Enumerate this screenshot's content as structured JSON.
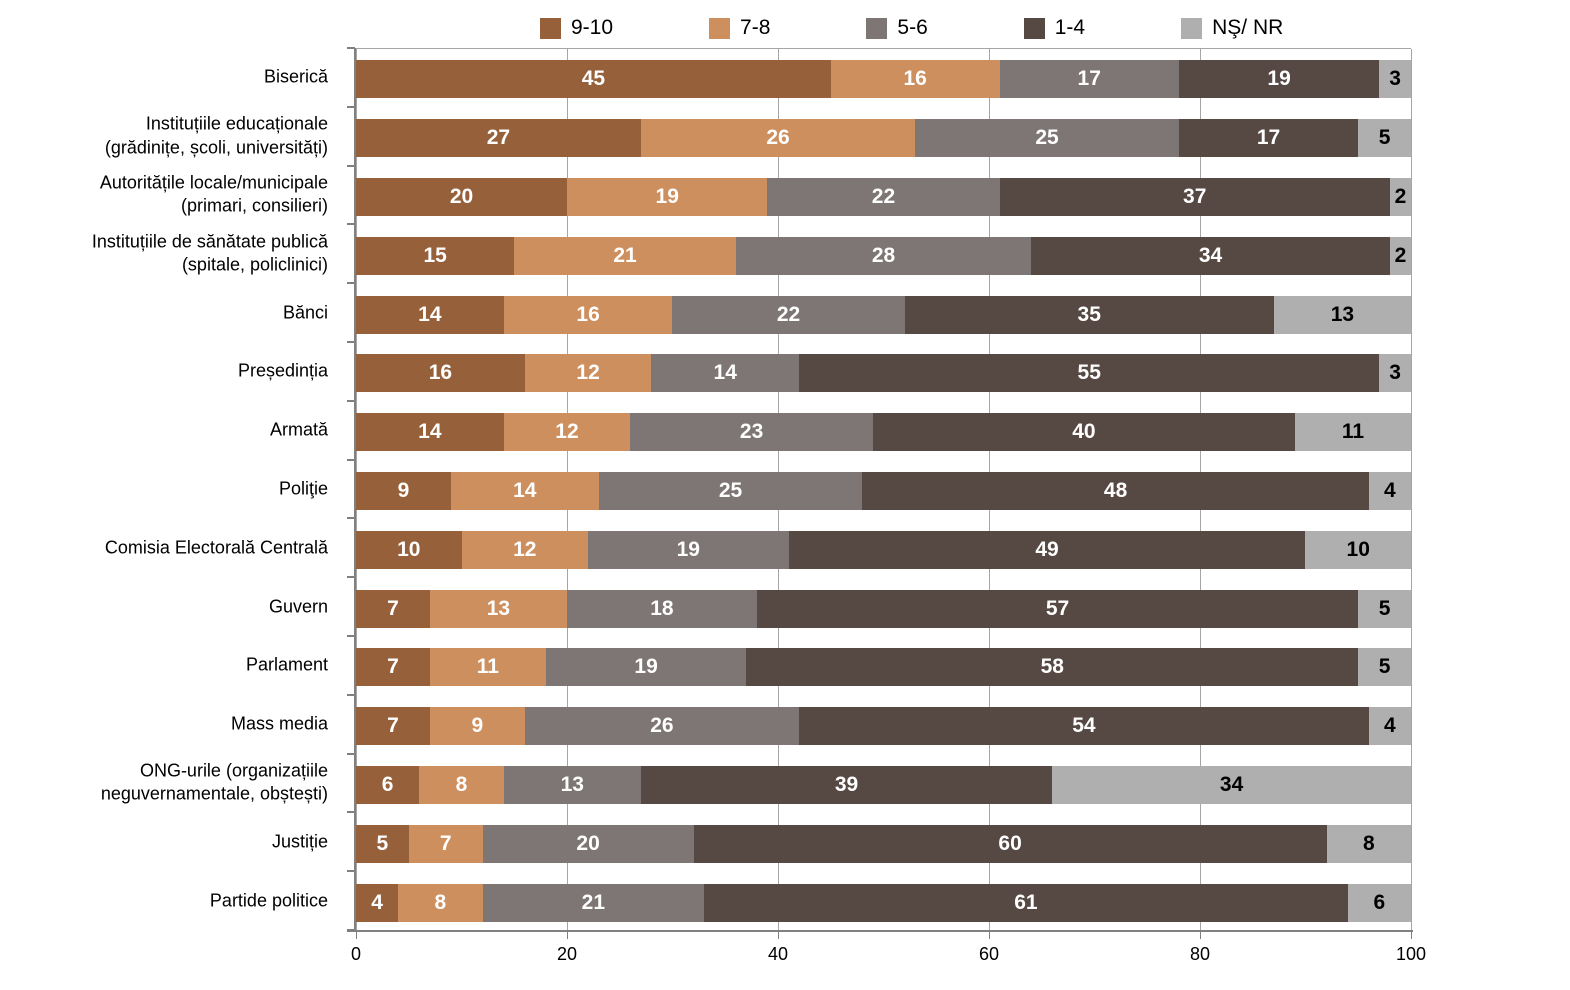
{
  "chart_data": {
    "type": "bar",
    "orientation": "horizontal",
    "stacked": true,
    "title": "",
    "xlabel": "",
    "ylabel": "",
    "xlim": [
      0,
      100
    ],
    "x_ticks": [
      0,
      20,
      40,
      60,
      80,
      100
    ],
    "grid": "vertical",
    "legend_position": "top",
    "categories": [
      "Biserică",
      "Instituțiile educaționale\n(grădinițe, școli, universități)",
      "Autoritățile locale/municipale\n(primari, consilieri)",
      "Instituțiile de sănătate publică\n(spitale, policlinici)",
      "Bănci",
      "Președinția",
      "Armată",
      "Poliţie",
      "Comisia Electorală Centrală",
      "Guvern",
      "Parlament",
      "Mass media",
      "ONG-urile (organizațiile\nneguvernamentale, obștești)",
      "Justiție",
      "Partide politice"
    ],
    "series": [
      {
        "name": "9-10",
        "color": "#96613A",
        "text_color": "#FFFFFF",
        "values": [
          45,
          27,
          20,
          15,
          14,
          16,
          14,
          9,
          10,
          7,
          7,
          7,
          6,
          5,
          4
        ]
      },
      {
        "name": "7-8",
        "color": "#CE8F5E",
        "text_color": "#FFFFFF",
        "values": [
          16,
          26,
          19,
          21,
          16,
          12,
          12,
          14,
          12,
          13,
          11,
          9,
          8,
          7,
          8
        ]
      },
      {
        "name": "5-6",
        "color": "#7E7674",
        "text_color": "#FFFFFF",
        "values": [
          17,
          25,
          22,
          28,
          22,
          14,
          23,
          25,
          19,
          18,
          19,
          26,
          13,
          20,
          21
        ]
      },
      {
        "name": "1-4",
        "color": "#564843",
        "text_color": "#FFFFFF",
        "values": [
          19,
          17,
          37,
          34,
          35,
          55,
          40,
          48,
          49,
          57,
          58,
          54,
          39,
          60,
          61
        ]
      },
      {
        "name": "NŞ/ NR",
        "color": "#B0AFAF",
        "text_color": "#000000",
        "values": [
          3,
          5,
          2,
          2,
          13,
          3,
          11,
          4,
          10,
          5,
          5,
          4,
          34,
          8,
          6
        ]
      }
    ],
    "axis_color": "#808080",
    "gridline_color": "#A6A6A6"
  }
}
